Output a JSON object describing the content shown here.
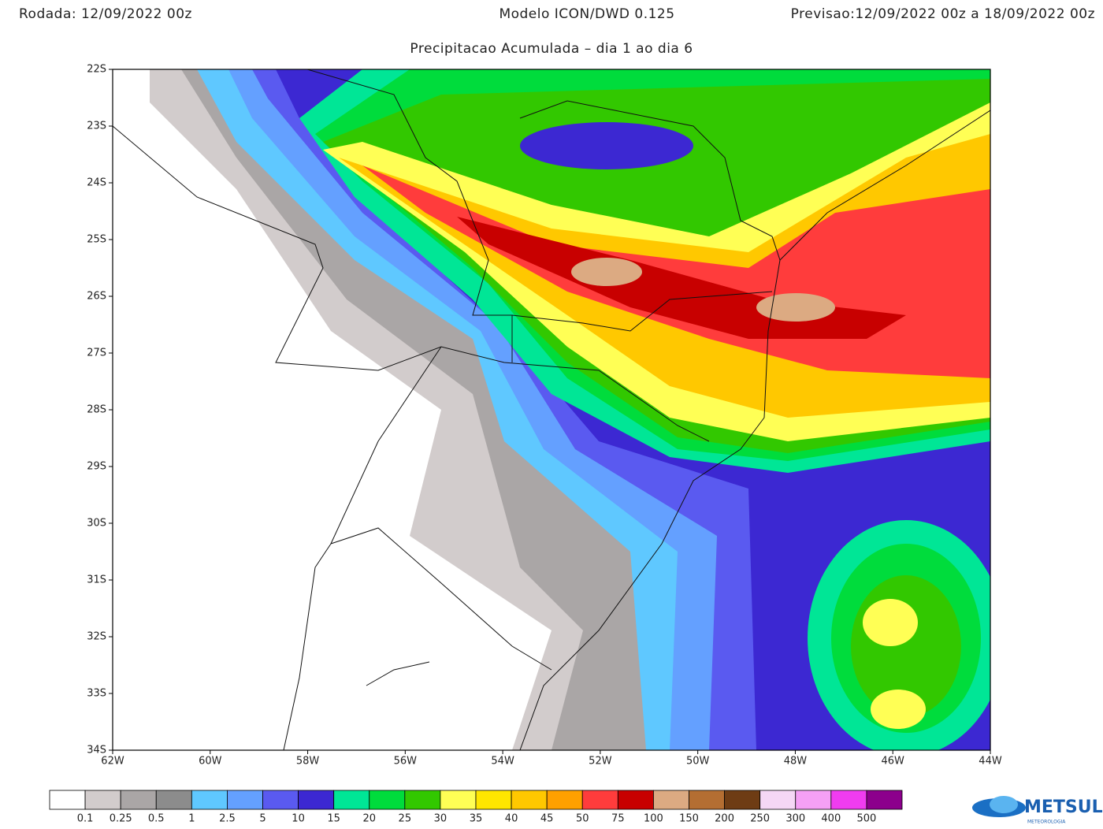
{
  "header": {
    "run": "Rodada: 12/09/2022 00z",
    "model": "Modelo ICON/DWD 0.125",
    "forecast": "Previsao:12/09/2022 00z a 18/09/2022 00z",
    "subtitle": "Precipitacao Acumulada – dia 1 ao dia 6"
  },
  "map": {
    "lat_labels": [
      "22S",
      "23S",
      "24S",
      "25S",
      "26S",
      "27S",
      "28S",
      "29S",
      "30S",
      "31S",
      "32S",
      "33S",
      "34S"
    ],
    "lon_labels": [
      "62W",
      "60W",
      "58W",
      "56W",
      "54W",
      "52W",
      "50W",
      "48W",
      "46W",
      "44W"
    ]
  },
  "colorbar": {
    "colors": [
      "#ffffff",
      "#d2cccc",
      "#aaa6a6",
      "#8c8c8c",
      "#5fc8ff",
      "#64a0ff",
      "#5a5af0",
      "#3c28d2",
      "#00e696",
      "#00dc3c",
      "#32c800",
      "#ffff55",
      "#ffe600",
      "#ffc800",
      "#ffa000",
      "#ff3c3c",
      "#c80000",
      "#dcaa82",
      "#b46e32",
      "#6e3c14",
      "#f5d7f5",
      "#f5a0f5",
      "#f03cf0",
      "#8c008c"
    ],
    "labels": [
      "0.1",
      "0.25",
      "0.5",
      "1",
      "2.5",
      "5",
      "10",
      "15",
      "20",
      "25",
      "30",
      "35",
      "40",
      "45",
      "50",
      "75",
      "100",
      "150",
      "200",
      "250",
      "300",
      "400",
      "500"
    ]
  },
  "logo": {
    "text": "METSUL",
    "subtext": "METEOROLOGIA"
  }
}
